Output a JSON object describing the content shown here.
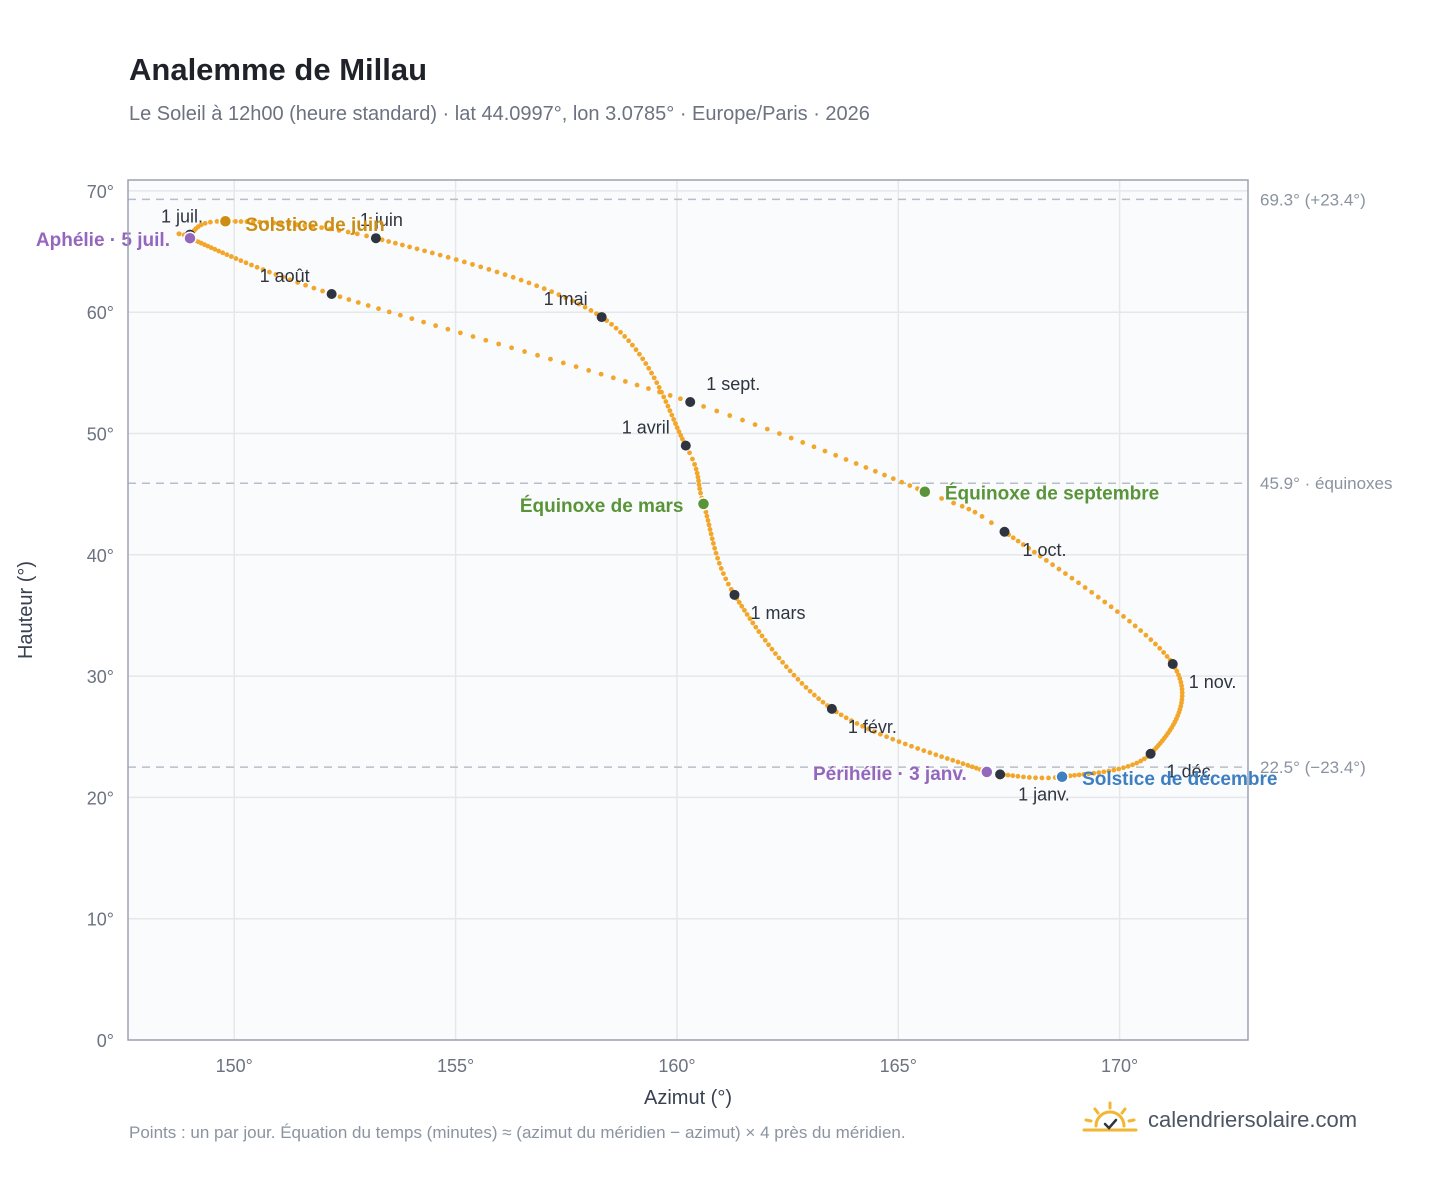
{
  "header": {
    "title": "Analemme de Millau",
    "subtitle": "Le Soleil à 12h00 (heure standard) · lat 44.0997°, lon 3.0785° · Europe/Paris · 2026"
  },
  "footer": {
    "note": "Points : un par jour. Équation du temps (minutes) ≈ (azimut du méridien − azimut) × 4 près du méridien.",
    "brand": "calendriersolaire.com",
    "brand_icon": "sun-logo-icon"
  },
  "colors": {
    "curve": "#f2a72b",
    "month_dot": "#2f3540",
    "equinox": "#5a9438",
    "june_solstice": "#cc8d14",
    "december_solstice": "#3e7fc1",
    "apsis": "#9467bd",
    "grid": "#e5e7eb",
    "axis": "#9aa3b2",
    "ref_line": "#b7bec9",
    "plot_bg": "#f9fbfd"
  },
  "chart_data": {
    "type": "scatter",
    "title": "Analemme de Millau",
    "xlabel": "Azimut (°)",
    "ylabel": "Hauteur (°)",
    "xlim": [
      147.6,
      172.9
    ],
    "ylim": [
      0,
      70.9
    ],
    "x_ticks": [
      150,
      155,
      160,
      165,
      170
    ],
    "y_ticks": [
      0,
      10,
      20,
      30,
      40,
      50,
      60,
      70
    ],
    "x_tick_labels": [
      "150°",
      "155°",
      "160°",
      "165°",
      "170°"
    ],
    "y_tick_labels": [
      "0°",
      "10°",
      "20°",
      "30°",
      "40°",
      "50°",
      "60°",
      "70°"
    ],
    "grid": true,
    "reference_lines": [
      {
        "y": 69.3,
        "label": "69.3° (+23.4°)"
      },
      {
        "y": 45.9,
        "label": "45.9° · équinoxes"
      },
      {
        "y": 22.5,
        "label": "22.5° (−23.4°)"
      }
    ],
    "month_markers": [
      {
        "label": "1 janv.",
        "azimut": 167.3,
        "hauteur": 21.9
      },
      {
        "label": "1 févr.",
        "azimut": 163.5,
        "hauteur": 27.3
      },
      {
        "label": "1 mars",
        "azimut": 161.3,
        "hauteur": 36.7
      },
      {
        "label": "1 avril",
        "azimut": 160.2,
        "hauteur": 49.0
      },
      {
        "label": "1 mai",
        "azimut": 158.3,
        "hauteur": 59.6
      },
      {
        "label": "1 juin",
        "azimut": 153.2,
        "hauteur": 66.1
      },
      {
        "label": "1 juil.",
        "azimut": 149.0,
        "hauteur": 66.4
      },
      {
        "label": "1 août",
        "azimut": 152.2,
        "hauteur": 61.5
      },
      {
        "label": "1 sept.",
        "azimut": 160.3,
        "hauteur": 52.6
      },
      {
        "label": "1 oct.",
        "azimut": 167.4,
        "hauteur": 41.9
      },
      {
        "label": "1 nov.",
        "azimut": 171.2,
        "hauteur": 31.0
      },
      {
        "label": "1 déc.",
        "azimut": 170.7,
        "hauteur": 23.6
      }
    ],
    "events": [
      {
        "label": "Équinoxe de mars",
        "azimut": 160.6,
        "hauteur": 44.2,
        "kind": "equinox"
      },
      {
        "label": "Solstice de juin",
        "azimut": 149.8,
        "hauteur": 67.5,
        "kind": "june_solstice"
      },
      {
        "label": "Équinoxe de septembre",
        "azimut": 165.6,
        "hauteur": 45.2,
        "kind": "equinox"
      },
      {
        "label": "Solstice de décembre",
        "azimut": 168.7,
        "hauteur": 21.7,
        "kind": "december_solstice"
      },
      {
        "label": "Aphélie · 5 juil.",
        "azimut": 149.0,
        "hauteur": 66.1,
        "kind": "apsis"
      },
      {
        "label": "Périhélie · 3 janv.",
        "azimut": 167.0,
        "hauteur": 22.1,
        "kind": "apsis"
      }
    ],
    "daily_points_per_day": 1
  }
}
